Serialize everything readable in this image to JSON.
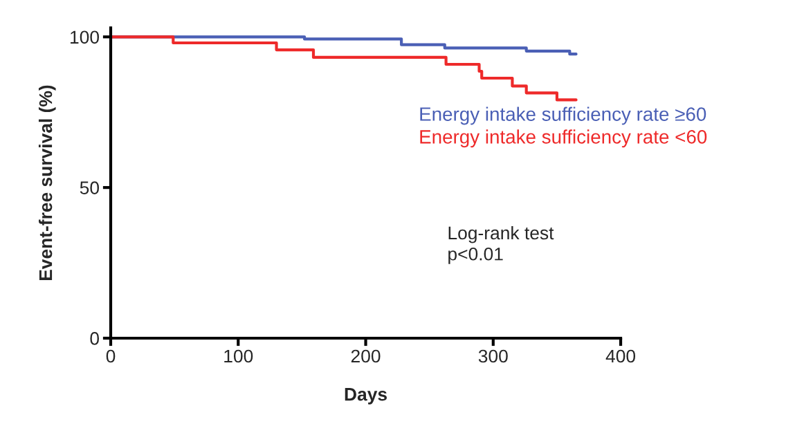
{
  "chart_data": {
    "type": "step",
    "xlabel": "Days",
    "ylabel": "Event-free survival (%)",
    "xlim": [
      0,
      400
    ],
    "xticks": [
      0,
      100,
      200,
      300,
      400
    ],
    "ylim": [
      0,
      103
    ],
    "yticks": [
      0,
      50,
      100
    ],
    "grid": false,
    "legend": "right",
    "line_style": "solid",
    "marker": "none",
    "series": [
      {
        "name": "Energy intake sufficiency rate ≥60",
        "color": "#4a5fb5",
        "x": [
          0,
          152,
          228,
          262,
          326,
          360,
          365
        ],
        "values": [
          100,
          99.3,
          97.4,
          96.3,
          95.3,
          94.3,
          94.3
        ]
      },
      {
        "name": "Energy intake sufficiency rate <60",
        "color": "#ee2a2a",
        "x": [
          0,
          49,
          130,
          159,
          263,
          289,
          291,
          315,
          326,
          350,
          365
        ],
        "values": [
          100,
          98,
          95.7,
          93.2,
          90.9,
          88.6,
          86.3,
          83.7,
          81.4,
          79.1,
          79.1
        ]
      }
    ],
    "annotations": [
      "Log-rank test\np<0.01"
    ]
  }
}
